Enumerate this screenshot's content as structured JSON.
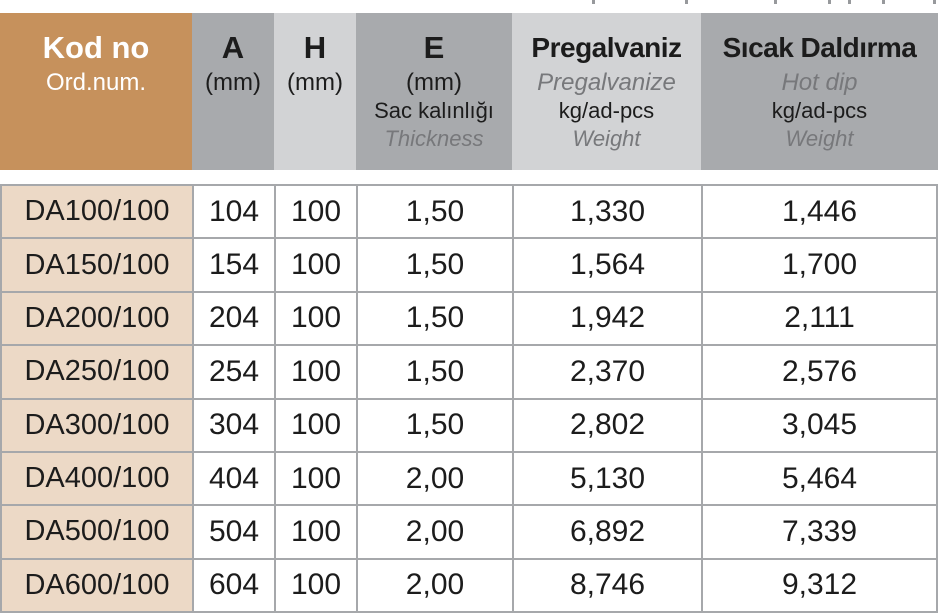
{
  "colors": {
    "header_brown": "#c6915c",
    "gray_medium": "#a8aaad",
    "gray_light": "#d2d3d5",
    "row_beige": "#ecd9c6",
    "grid_border": "#a6a8ab",
    "italic_text": "#77787b",
    "text": "#1c1c1c"
  },
  "table": {
    "columns": [
      {
        "title": "Kod no",
        "subtitle": "Ord.num."
      },
      {
        "title": "A",
        "unit": "(mm)"
      },
      {
        "title": "H",
        "unit": "(mm)"
      },
      {
        "title": "E",
        "unit": "(mm)",
        "line3": "Sac kalınlığı",
        "line4": "Thickness"
      },
      {
        "title": "Pregalvaniz",
        "subtitle": "Pregalvanize",
        "line3": "kg/ad-pcs",
        "line4": "Weight"
      },
      {
        "title": "Sıcak Daldırma",
        "subtitle": "Hot dip",
        "line3": "kg/ad-pcs",
        "line4": "Weight"
      }
    ],
    "rows": [
      [
        "DA100/100",
        "104",
        "100",
        "1,50",
        "1,330",
        "1,446"
      ],
      [
        "DA150/100",
        "154",
        "100",
        "1,50",
        "1,564",
        "1,700"
      ],
      [
        "DA200/100",
        "204",
        "100",
        "1,50",
        "1,942",
        "2,111"
      ],
      [
        "DA250/100",
        "254",
        "100",
        "1,50",
        "2,370",
        "2,576"
      ],
      [
        "DA300/100",
        "304",
        "100",
        "1,50",
        "2,802",
        "3,045"
      ],
      [
        "DA400/100",
        "404",
        "100",
        "2,00",
        "5,130",
        "5,464"
      ],
      [
        "DA500/100",
        "504",
        "100",
        "2,00",
        "6,892",
        "7,339"
      ],
      [
        "DA600/100",
        "604",
        "100",
        "2,00",
        "8,746",
        "9,312"
      ]
    ]
  }
}
